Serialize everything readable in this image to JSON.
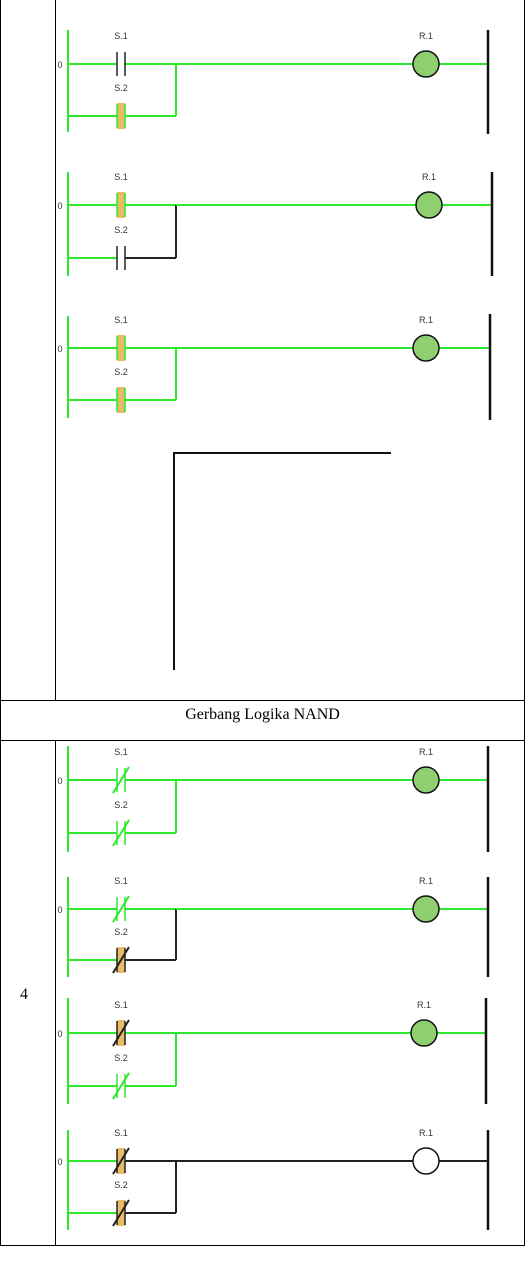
{
  "section_header": "Gerbang Logika NAND",
  "row_number": "4",
  "colors": {
    "energized": "#2ee82e",
    "deenergized": "#222222",
    "contact_active": "#e8bb66",
    "coil_on": "#8fcf6f",
    "coil_off": "#ffffff"
  },
  "or_gate_rungs": [
    {
      "rung_number": "0",
      "contact_1": {
        "label": "S.1",
        "type": "NO",
        "state": "open"
      },
      "contact_2": {
        "label": "S.2",
        "type": "NO",
        "state": "closed"
      },
      "coil": {
        "label": "R.1",
        "state": "on"
      }
    },
    {
      "rung_number": "0",
      "contact_1": {
        "label": "S.1",
        "type": "NO",
        "state": "closed"
      },
      "contact_2": {
        "label": "S.2",
        "type": "NO",
        "state": "open"
      },
      "coil": {
        "label": "R.1",
        "state": "on"
      }
    },
    {
      "rung_number": "0",
      "contact_1": {
        "label": "S.1",
        "type": "NO",
        "state": "closed"
      },
      "contact_2": {
        "label": "S.2",
        "type": "NO",
        "state": "closed"
      },
      "coil": {
        "label": "R.1",
        "state": "on"
      }
    }
  ],
  "nand_gate_rungs": [
    {
      "rung_number": "0",
      "contact_1": {
        "label": "S.1",
        "type": "NC",
        "state": "closed"
      },
      "contact_2": {
        "label": "S.2",
        "type": "NC",
        "state": "closed"
      },
      "coil": {
        "label": "R.1",
        "state": "on"
      }
    },
    {
      "rung_number": "0",
      "contact_1": {
        "label": "S.1",
        "type": "NC",
        "state": "closed"
      },
      "contact_2": {
        "label": "S.2",
        "type": "NC",
        "state": "open"
      },
      "coil": {
        "label": "R.1",
        "state": "on"
      }
    },
    {
      "rung_number": "0",
      "contact_1": {
        "label": "S.1",
        "type": "NC",
        "state": "open"
      },
      "contact_2": {
        "label": "S.2",
        "type": "NC",
        "state": "closed"
      },
      "coil": {
        "label": "R.1",
        "state": "on"
      }
    },
    {
      "rung_number": "0",
      "contact_1": {
        "label": "S.1",
        "type": "NC",
        "state": "open"
      },
      "contact_2": {
        "label": "S.2",
        "type": "NC",
        "state": "open"
      },
      "coil": {
        "label": "R.1",
        "state": "off"
      }
    }
  ]
}
